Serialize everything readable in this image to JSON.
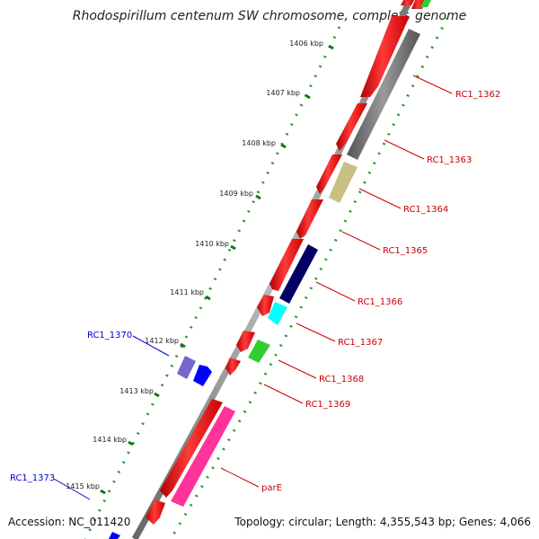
{
  "title": "Rhodospirillum centenum SW chromosome, complete genome",
  "footer": {
    "accession_label": "Accession:",
    "accession": "NC_011420",
    "topology_label": "Topology:",
    "topology": "circular",
    "length_label": "Length:",
    "length": "4,355,543 bp",
    "genes_label": "Genes:",
    "genes": "4,066"
  },
  "ticks": [
    "1406 kbp",
    "1407 kbp",
    "1408 kbp",
    "1409 kbp",
    "1410 kbp",
    "1411 kbp",
    "1412 kbp",
    "1413 kbp",
    "1414 kbp",
    "1415 kbp"
  ],
  "gene_labels": [
    {
      "id": "RC1_1362",
      "color": "#cc0000"
    },
    {
      "id": "RC1_1363",
      "color": "#cc0000"
    },
    {
      "id": "RC1_1364",
      "color": "#cc0000"
    },
    {
      "id": "RC1_1365",
      "color": "#cc0000"
    },
    {
      "id": "RC1_1366",
      "color": "#cc0000"
    },
    {
      "id": "RC1_1367",
      "color": "#cc0000"
    },
    {
      "id": "RC1_1368",
      "color": "#cc0000"
    },
    {
      "id": "RC1_1369",
      "color": "#cc0000"
    },
    {
      "id": "parE",
      "color": "#cc0000"
    },
    {
      "id": "RC1_1370",
      "color": "#0000cc"
    },
    {
      "id": "RC1_1373",
      "color": "#0000cc"
    }
  ],
  "colors": {
    "cds_red": "#ff0000",
    "gray_gene": "#777777",
    "khaki_gene": "#c8c080",
    "navy_gene": "#000066",
    "cyan_gene": "#00ffff",
    "green_gene": "#33cc33",
    "pink_gene": "#ff3399",
    "purple_gene": "#7766cc",
    "blue_gene": "#0000ff",
    "backbone": "#888888",
    "dots": "#229922"
  }
}
